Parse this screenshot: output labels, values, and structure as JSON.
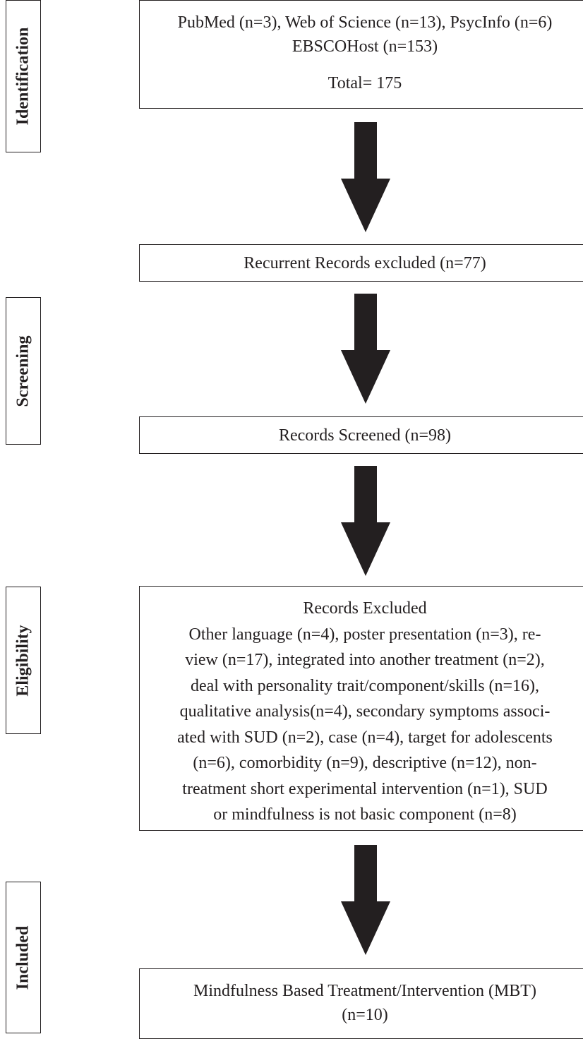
{
  "stages": {
    "identification": "Identification",
    "screening": "Screening",
    "eligibility": "Eligibility",
    "included": "Included"
  },
  "boxes": {
    "identification": {
      "line1": "PubMed (n=3), Web of Science (n=13), PsycInfo (n=6)",
      "line2": "EBSCOHost (n=153)",
      "total": "Total= 175"
    },
    "recurrent_excluded": "Recurrent Records excluded (n=77)",
    "screened": "Records Screened (n=98)",
    "excluded": {
      "title": "Records Excluded",
      "lines": [
        "Other language (n=4), poster presentation (n=3), re-",
        "view (n=17), integrated into another treatment (n=2),",
        "deal with personality trait/component/skills (n=16),",
        "qualitative analysis(n=4), secondary symptoms associ-",
        "ated with SUD (n=2), case (n=4), target for adolescents",
        "(n=6), comorbidity (n=9), descriptive (n=12), non-",
        "treatment short experimental intervention (n=1), SUD",
        "or mindfulness is not basic component (n=8)"
      ]
    },
    "included": {
      "line1": "Mindfulness Based Treatment/Intervention (MBT)",
      "line2": "(n=10)"
    }
  },
  "colors": {
    "ink": "#231f20",
    "arrow": "#231f20"
  }
}
